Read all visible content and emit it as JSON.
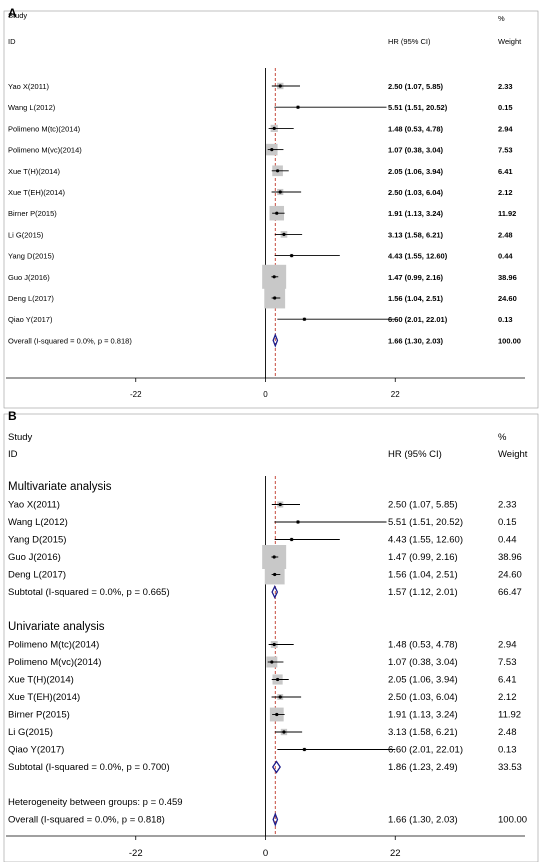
{
  "chart_data": [
    {
      "type": "forest",
      "panel_label": "A",
      "header": {
        "study": "Study",
        "id": "ID",
        "effect": "HR (95% CI)",
        "pct": "%",
        "weight": "Weight"
      },
      "xlim": [
        -44,
        44
      ],
      "x_ticks": [
        -22,
        0,
        22
      ],
      "tick_labels": [
        "-22",
        "0",
        "22"
      ],
      "reference_line": 0,
      "overall_line": 1.66,
      "rows": [
        {
          "kind": "study",
          "label": "Yao X(2011)",
          "hr": 2.5,
          "lo": 1.07,
          "hi": 5.85,
          "ci_text": "2.50 (1.07, 5.85)",
          "weight": 2.33,
          "weight_text": "2.33"
        },
        {
          "kind": "study",
          "label": "Wang L(2012)",
          "hr": 5.51,
          "lo": 1.51,
          "hi": 20.52,
          "ci_text": "5.51 (1.51, 20.52)",
          "weight": 0.15,
          "weight_text": "0.15"
        },
        {
          "kind": "study",
          "label": "Polimeno M(tc)(2014)",
          "hr": 1.48,
          "lo": 0.53,
          "hi": 4.78,
          "ci_text": "1.48 (0.53, 4.78)",
          "weight": 2.94,
          "weight_text": "2.94"
        },
        {
          "kind": "study",
          "label": "Polimeno M(vc)(2014)",
          "hr": 1.07,
          "lo": 0.38,
          "hi": 3.04,
          "ci_text": "1.07 (0.38, 3.04)",
          "weight": 7.53,
          "weight_text": "7.53"
        },
        {
          "kind": "study",
          "label": "Xue T(H)(2014)",
          "hr": 2.05,
          "lo": 1.06,
          "hi": 3.94,
          "ci_text": "2.05 (1.06, 3.94)",
          "weight": 6.41,
          "weight_text": "6.41"
        },
        {
          "kind": "study",
          "label": "Xue T(EH)(2014)",
          "hr": 2.5,
          "lo": 1.03,
          "hi": 6.04,
          "ci_text": "2.50 (1.03, 6.04)",
          "weight": 2.12,
          "weight_text": "2.12"
        },
        {
          "kind": "study",
          "label": "Birner P(2015)",
          "hr": 1.91,
          "lo": 1.13,
          "hi": 3.24,
          "ci_text": "1.91 (1.13, 3.24)",
          "weight": 11.92,
          "weight_text": "11.92"
        },
        {
          "kind": "study",
          "label": "Li G(2015)",
          "hr": 3.13,
          "lo": 1.58,
          "hi": 6.21,
          "ci_text": "3.13 (1.58, 6.21)",
          "weight": 2.48,
          "weight_text": "2.48"
        },
        {
          "kind": "study",
          "label": "Yang D(2015)",
          "hr": 4.43,
          "lo": 1.55,
          "hi": 12.6,
          "ci_text": "4.43 (1.55, 12.60)",
          "weight": 0.44,
          "weight_text": "0.44"
        },
        {
          "kind": "study",
          "label": "Guo J(2016)",
          "hr": 1.47,
          "lo": 0.99,
          "hi": 2.16,
          "ci_text": "1.47 (0.99, 2.16)",
          "weight": 38.96,
          "weight_text": "38.96"
        },
        {
          "kind": "study",
          "label": "Deng L(2017)",
          "hr": 1.56,
          "lo": 1.04,
          "hi": 2.51,
          "ci_text": "1.56 (1.04, 2.51)",
          "weight": 24.6,
          "weight_text": "24.60"
        },
        {
          "kind": "study",
          "label": "Qiao Y(2017)",
          "hr": 6.6,
          "lo": 2.01,
          "hi": 22.01,
          "ci_text": "6.60 (2.01, 22.01)",
          "weight": 0.13,
          "weight_text": "0.13"
        },
        {
          "kind": "overall",
          "label": "Overall  (I-squared = 0.0%, p = 0.818)",
          "hr": 1.66,
          "lo": 1.3,
          "hi": 2.03,
          "ci_text": "1.66 (1.30, 2.03)",
          "weight": 100.0,
          "weight_text": "100.00"
        }
      ]
    },
    {
      "type": "forest",
      "panel_label": "B",
      "header": {
        "study": "Study",
        "id": "ID",
        "effect": "HR (95% CI)",
        "pct": "%",
        "weight": "Weight"
      },
      "xlim": [
        -44,
        44
      ],
      "x_ticks": [
        -22,
        0,
        22
      ],
      "tick_labels": [
        "-22",
        "0",
        "22"
      ],
      "reference_line": 0,
      "overall_line": 1.66,
      "rows": [
        {
          "kind": "group",
          "label": "Multivariate analysis"
        },
        {
          "kind": "study",
          "label": "Yao X(2011)",
          "hr": 2.5,
          "lo": 1.07,
          "hi": 5.85,
          "ci_text": "2.50 (1.07, 5.85)",
          "weight": 2.33,
          "weight_text": "2.33"
        },
        {
          "kind": "study",
          "label": "Wang L(2012)",
          "hr": 5.51,
          "lo": 1.51,
          "hi": 20.52,
          "ci_text": "5.51 (1.51, 20.52)",
          "weight": 0.15,
          "weight_text": "0.15"
        },
        {
          "kind": "study",
          "label": "Yang D(2015)",
          "hr": 4.43,
          "lo": 1.55,
          "hi": 12.6,
          "ci_text": "4.43 (1.55, 12.60)",
          "weight": 0.44,
          "weight_text": "0.44"
        },
        {
          "kind": "study",
          "label": "Guo J(2016)",
          "hr": 1.47,
          "lo": 0.99,
          "hi": 2.16,
          "ci_text": "1.47 (0.99, 2.16)",
          "weight": 38.96,
          "weight_text": "38.96"
        },
        {
          "kind": "study",
          "label": "Deng L(2017)",
          "hr": 1.56,
          "lo": 1.04,
          "hi": 2.51,
          "ci_text": "1.56 (1.04, 2.51)",
          "weight": 24.6,
          "weight_text": "24.60"
        },
        {
          "kind": "subtotal",
          "label": "Subtotal  (I-squared = 0.0%, p = 0.665)",
          "hr": 1.57,
          "lo": 1.12,
          "hi": 2.01,
          "ci_text": "1.57 (1.12, 2.01)",
          "weight": 66.47,
          "weight_text": "66.47"
        },
        {
          "kind": "blank"
        },
        {
          "kind": "group",
          "label": "Univariate analysis"
        },
        {
          "kind": "study",
          "label": "Polimeno M(tc)(2014)",
          "hr": 1.48,
          "lo": 0.53,
          "hi": 4.78,
          "ci_text": "1.48 (0.53, 4.78)",
          "weight": 2.94,
          "weight_text": "2.94"
        },
        {
          "kind": "study",
          "label": "Polimeno M(vc)(2014)",
          "hr": 1.07,
          "lo": 0.38,
          "hi": 3.04,
          "ci_text": "1.07 (0.38, 3.04)",
          "weight": 7.53,
          "weight_text": "7.53"
        },
        {
          "kind": "study",
          "label": "Xue T(H)(2014)",
          "hr": 2.05,
          "lo": 1.06,
          "hi": 3.94,
          "ci_text": "2.05 (1.06, 3.94)",
          "weight": 6.41,
          "weight_text": "6.41"
        },
        {
          "kind": "study",
          "label": "Xue T(EH)(2014)",
          "hr": 2.5,
          "lo": 1.03,
          "hi": 6.04,
          "ci_text": "2.50 (1.03, 6.04)",
          "weight": 2.12,
          "weight_text": "2.12"
        },
        {
          "kind": "study",
          "label": "Birner P(2015)",
          "hr": 1.91,
          "lo": 1.13,
          "hi": 3.24,
          "ci_text": "1.91 (1.13, 3.24)",
          "weight": 11.92,
          "weight_text": "11.92"
        },
        {
          "kind": "study",
          "label": "Li G(2015)",
          "hr": 3.13,
          "lo": 1.58,
          "hi": 6.21,
          "ci_text": "3.13 (1.58, 6.21)",
          "weight": 2.48,
          "weight_text": "2.48"
        },
        {
          "kind": "study",
          "label": "Qiao Y(2017)",
          "hr": 6.6,
          "lo": 2.01,
          "hi": 22.01,
          "ci_text": "6.60 (2.01, 22.01)",
          "weight": 0.13,
          "weight_text": "0.13"
        },
        {
          "kind": "subtotal",
          "label": "Subtotal  (I-squared = 0.0%, p = 0.700)",
          "hr": 1.86,
          "lo": 1.23,
          "hi": 2.49,
          "ci_text": "1.86 (1.23, 2.49)",
          "weight": 33.53,
          "weight_text": "33.53"
        },
        {
          "kind": "blank"
        },
        {
          "kind": "note",
          "label": "Heterogeneity between groups: p = 0.459"
        },
        {
          "kind": "overall",
          "label": "Overall  (I-squared = 0.0%, p = 0.818)",
          "hr": 1.66,
          "lo": 1.3,
          "hi": 2.03,
          "ci_text": "1.66 (1.30, 2.03)",
          "weight": 100.0,
          "weight_text": "100.00"
        }
      ]
    }
  ],
  "style": {
    "box_color": "#c8c8c8",
    "diamond_color": "#1e1e8c",
    "overall_line_color": "#c0392b",
    "axis_color": "#000000",
    "frame_color": "#999999"
  }
}
